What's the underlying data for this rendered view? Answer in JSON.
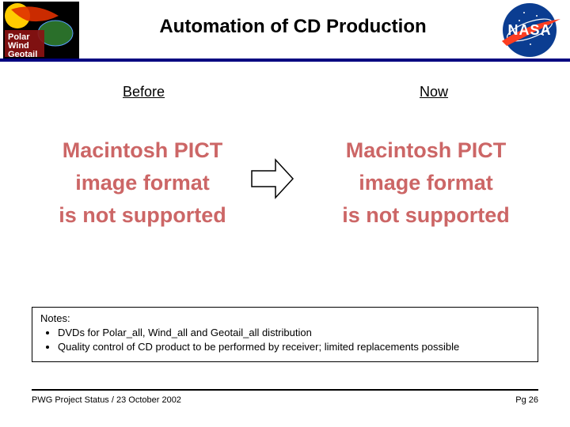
{
  "header": {
    "title": "Automation of CD Production",
    "title_fontsize": 24,
    "title_color": "#000000",
    "rule_color": "#000080",
    "logo_left": {
      "name": "pwg-logo",
      "lines": [
        "Polar",
        "Wind",
        "Geotail"
      ],
      "sun_color": "#ffcc00",
      "flare_color": "#e03000",
      "earth_color": "#2a6f2a",
      "banner_color": "#8a1212",
      "text_color": "#ffffff",
      "bg": "#000000"
    },
    "logo_right": {
      "name": "nasa-logo",
      "text": "NASA",
      "circle_color": "#0b3d91",
      "swoosh_color": "#fc3d21",
      "orbit_color": "#ffffff",
      "text_color": "#ffffff"
    }
  },
  "columns": {
    "before_label": "Before",
    "now_label": "Now",
    "label_fontsize": 18,
    "label_color": "#000000"
  },
  "placeholders": {
    "line1": "Macintosh PICT",
    "line2": "image format",
    "line3": "is not supported",
    "color": "#cc6666",
    "fontsize": 27
  },
  "arrow": {
    "stroke": "#000000",
    "fill": "#ffffff",
    "stroke_width": 1.5
  },
  "notes": {
    "heading": "Notes:",
    "bullets": [
      "DVDs for Polar_all, Wind_all and Geotail_all distribution",
      "Quality control of CD product to be performed by receiver; limited replacements possible"
    ],
    "fontsize": 13,
    "color": "#000000",
    "border_color": "#000000"
  },
  "footer": {
    "left": "PWG Project Status / 23 October 2002",
    "right": "Pg 26",
    "fontsize": 11,
    "color": "#000000",
    "rule_color": "#000000"
  }
}
